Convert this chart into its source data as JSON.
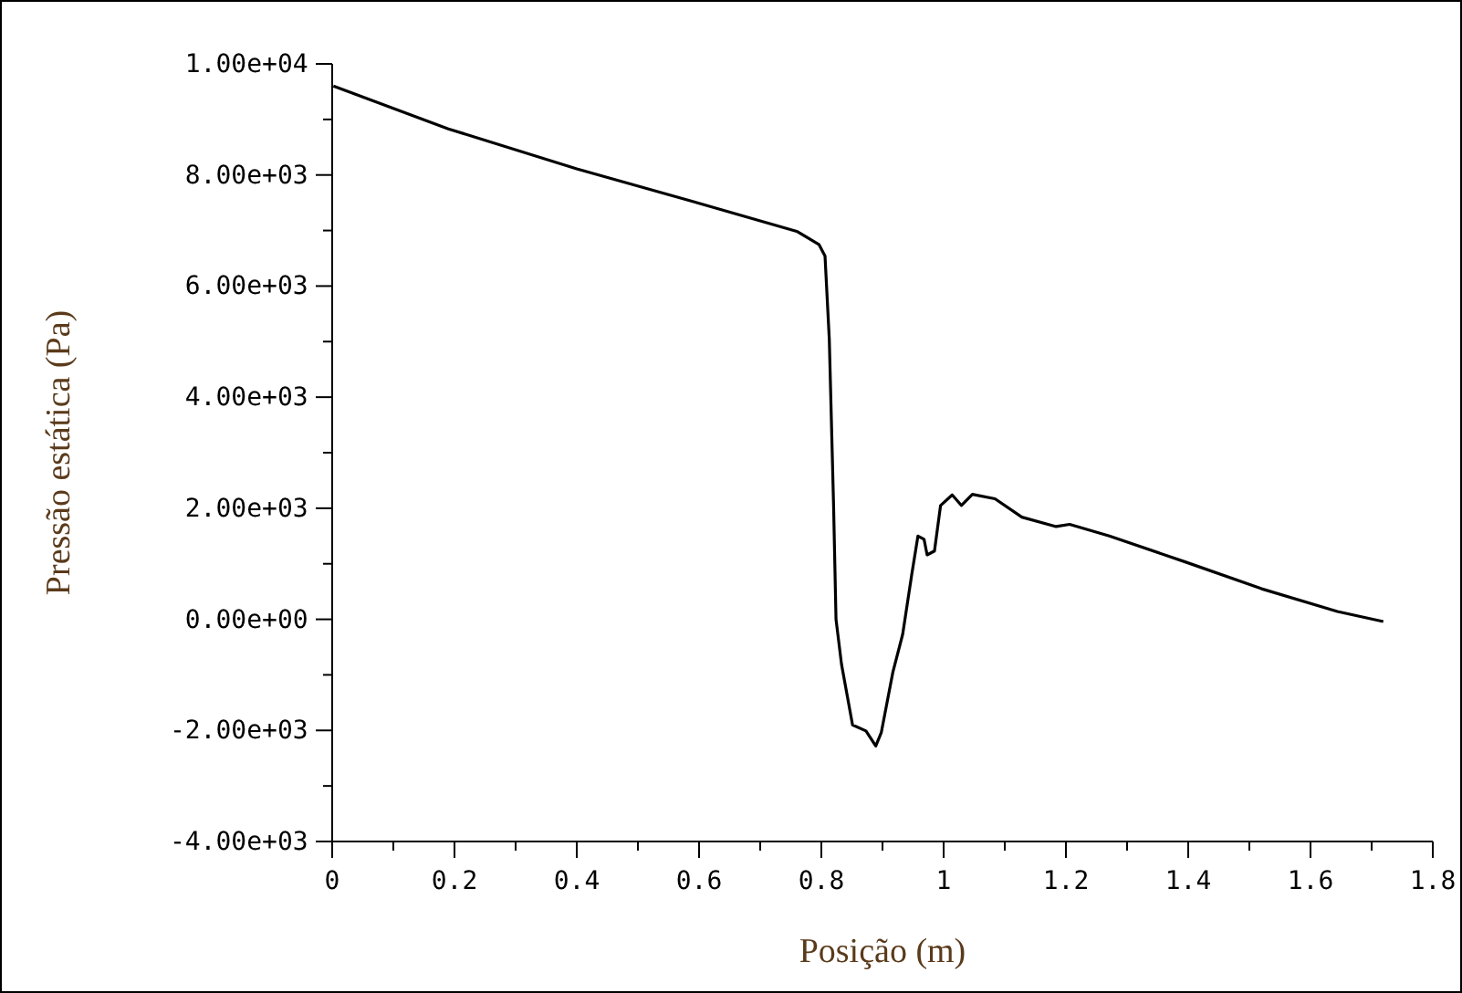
{
  "chart_data": {
    "type": "line",
    "xlabel": "Posição (m)",
    "ylabel": "Pressão estática (Pa)",
    "xlim": [
      0,
      1.8
    ],
    "ylim": [
      -4000,
      10000
    ],
    "xticks": [
      0,
      {
        "value": 0.1,
        "label": null
      },
      0.2,
      {
        "value": 0.3,
        "label": null
      },
      0.4,
      {
        "value": 0.5,
        "label": null
      },
      0.6,
      {
        "value": 0.7,
        "label": null
      },
      0.8,
      {
        "value": 0.9,
        "label": null
      },
      1,
      {
        "value": 1.1,
        "label": null
      },
      1.2,
      {
        "value": 1.3,
        "label": null
      },
      1.4,
      {
        "value": 1.5,
        "label": null
      },
      1.6,
      {
        "value": 1.7,
        "label": null
      },
      1.8
    ],
    "yticks": [
      {
        "value": -4000,
        "label": "-4.00e+03"
      },
      {
        "value": -3000,
        "label": null
      },
      {
        "value": -2000,
        "label": "-2.00e+03"
      },
      {
        "value": -1000,
        "label": null
      },
      {
        "value": 0,
        "label": "0.00e+00"
      },
      {
        "value": 1000,
        "label": null
      },
      {
        "value": 2000,
        "label": "2.00e+03"
      },
      {
        "value": 3000,
        "label": null
      },
      {
        "value": 4000,
        "label": "4.00e+03"
      },
      {
        "value": 5000,
        "label": null
      },
      {
        "value": 6000,
        "label": "6.00e+03"
      },
      {
        "value": 7000,
        "label": null
      },
      {
        "value": 8000,
        "label": "8.00e+03"
      },
      {
        "value": 9000,
        "label": null
      },
      {
        "value": 10000,
        "label": "1.00e+04"
      }
    ],
    "grid": false,
    "series": [
      {
        "color": "#000000",
        "x": [
          0.002,
          0.19,
          0.4,
          0.6,
          0.761,
          0.796,
          0.806,
          0.813,
          0.82,
          0.824,
          0.833,
          0.851,
          0.873,
          0.889,
          0.898,
          0.917,
          0.933,
          0.948,
          0.958,
          0.968,
          0.973,
          0.985,
          0.995,
          1.014,
          1.029,
          1.047,
          1.084,
          1.128,
          1.184,
          1.206,
          1.271,
          1.396,
          1.52,
          1.644,
          1.719
        ],
        "values": [
          9600,
          8830,
          8110,
          7490,
          6980,
          6750,
          6540,
          5040,
          2050,
          0,
          -810,
          -1900,
          -2010,
          -2280,
          -2040,
          -950,
          -270,
          820,
          1500,
          1440,
          1160,
          1230,
          2050,
          2240,
          2050,
          2250,
          2170,
          1840,
          1670,
          1710,
          1500,
          1030,
          550,
          140,
          -40
        ]
      }
    ]
  }
}
